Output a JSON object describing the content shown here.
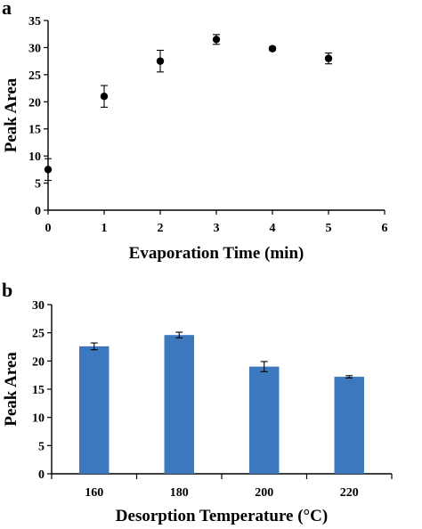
{
  "chart_data": [
    {
      "type": "scatter",
      "panel_label": "a",
      "xlabel": "Evaporation Time (min)",
      "ylabel": "Peak Area",
      "xlim": [
        0,
        6
      ],
      "ylim": [
        0,
        35
      ],
      "xticks": [
        0,
        1,
        2,
        3,
        4,
        5,
        6
      ],
      "yticks": [
        0,
        5,
        10,
        15,
        20,
        25,
        30,
        35
      ],
      "grid": false,
      "legend": "none",
      "marker_color": "#000000",
      "x": [
        0,
        1,
        2,
        3,
        4,
        5
      ],
      "y": [
        7.5,
        21.0,
        27.5,
        31.5,
        29.8,
        28.0
      ],
      "yerr": [
        2.0,
        2.0,
        2.0,
        0.9,
        0.3,
        1.0
      ]
    },
    {
      "type": "bar",
      "panel_label": "b",
      "xlabel": "Desorption Temperature (°C)",
      "ylabel": "Peak Area",
      "ylim": [
        0,
        30
      ],
      "yticks": [
        0,
        5,
        10,
        15,
        20,
        25,
        30
      ],
      "grid": false,
      "legend": "none",
      "bar_color": "#3b78bd",
      "categories": [
        "160",
        "180",
        "200",
        "220"
      ],
      "values": [
        22.6,
        24.6,
        19.0,
        17.2
      ],
      "yerr": [
        0.6,
        0.5,
        0.9,
        0.2
      ]
    }
  ]
}
